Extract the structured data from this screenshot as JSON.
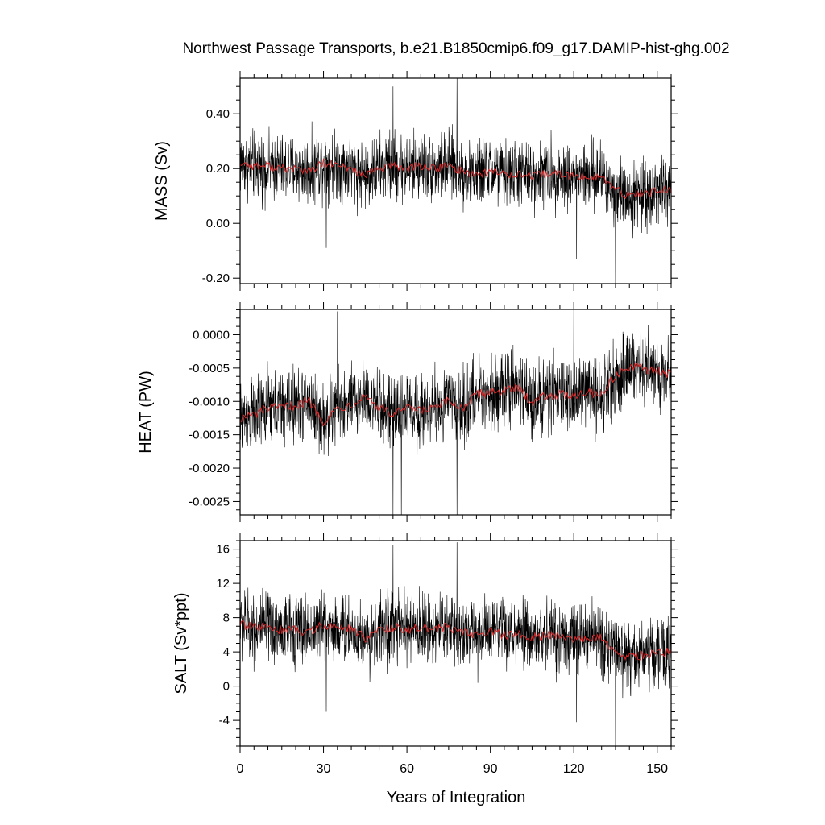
{
  "title": "Northwest Passage Transports, b.e21.B1850cmip6.f09_g17.DAMIP-hist-ghg.002",
  "xlabel": "Years of Integration",
  "colors": {
    "raw": "#000000",
    "smoothed": "#d62728"
  },
  "chart_data": [
    {
      "type": "line",
      "ylabel": "MASS (Sv)",
      "xlim": [
        0,
        155
      ],
      "ylim": [
        -0.22,
        0.53
      ],
      "yticks": [
        -0.2,
        0.0,
        0.2,
        0.4
      ],
      "ytick_labels": [
        "-0.20",
        "0.00",
        "0.20",
        "0.40"
      ],
      "xticks": [
        0,
        30,
        60,
        90,
        120,
        150
      ],
      "grid": false,
      "series": [
        {
          "role": "raw-monthly",
          "x": [
            0,
            5,
            10,
            15,
            20,
            25,
            30,
            35,
            40,
            45,
            50,
            55,
            60,
            65,
            70,
            75,
            80,
            85,
            90,
            95,
            100,
            105,
            110,
            115,
            120,
            125,
            130,
            135,
            140,
            145,
            150,
            155
          ],
          "y": [
            0.22,
            0.21,
            0.21,
            0.2,
            0.2,
            0.19,
            0.22,
            0.21,
            0.2,
            0.17,
            0.2,
            0.21,
            0.2,
            0.21,
            0.2,
            0.21,
            0.19,
            0.18,
            0.19,
            0.18,
            0.18,
            0.17,
            0.18,
            0.18,
            0.17,
            0.17,
            0.17,
            0.12,
            0.1,
            0.11,
            0.12,
            0.12
          ],
          "spread": 0.09,
          "extremes": [
            [
              55,
              0.5
            ],
            [
              78,
              0.53
            ],
            [
              135,
              -0.22
            ],
            [
              121,
              -0.13
            ],
            [
              31,
              -0.09
            ]
          ]
        },
        {
          "role": "smoothed",
          "x": [
            0,
            5,
            10,
            15,
            20,
            25,
            30,
            35,
            40,
            45,
            50,
            55,
            60,
            65,
            70,
            75,
            80,
            85,
            90,
            95,
            100,
            105,
            110,
            115,
            120,
            125,
            130,
            135,
            140,
            145,
            150,
            155
          ],
          "y": [
            0.22,
            0.21,
            0.21,
            0.2,
            0.2,
            0.19,
            0.22,
            0.21,
            0.2,
            0.17,
            0.2,
            0.21,
            0.2,
            0.21,
            0.2,
            0.21,
            0.19,
            0.18,
            0.19,
            0.18,
            0.18,
            0.17,
            0.18,
            0.18,
            0.17,
            0.17,
            0.17,
            0.12,
            0.1,
            0.11,
            0.12,
            0.12
          ]
        }
      ]
    },
    {
      "type": "line",
      "ylabel": "HEAT (PW)",
      "xlim": [
        0,
        155
      ],
      "ylim": [
        -0.0027,
        0.00038
      ],
      "yticks": [
        -0.0025,
        -0.002,
        -0.0015,
        -0.001,
        -0.0005,
        0.0
      ],
      "ytick_labels": [
        "-0.0025",
        "-0.0020",
        "-0.0015",
        "-0.0010",
        "-0.0005",
        "0.0000"
      ],
      "xticks": [
        0,
        30,
        60,
        90,
        120,
        150
      ],
      "grid": false,
      "series": [
        {
          "role": "raw-monthly",
          "x": [
            0,
            5,
            10,
            15,
            20,
            25,
            30,
            35,
            40,
            45,
            50,
            55,
            60,
            65,
            70,
            75,
            80,
            85,
            90,
            95,
            100,
            105,
            110,
            115,
            120,
            125,
            130,
            135,
            140,
            145,
            150,
            155
          ],
          "y": [
            -0.00125,
            -0.0012,
            -0.0011,
            -0.0011,
            -0.00105,
            -0.001,
            -0.0013,
            -0.0011,
            -0.00105,
            -0.0009,
            -0.0011,
            -0.0012,
            -0.0011,
            -0.00115,
            -0.0011,
            -0.001,
            -0.0011,
            -0.0009,
            -0.00085,
            -0.00085,
            -0.0008,
            -0.001,
            -0.0009,
            -0.0009,
            -0.0009,
            -0.00085,
            -0.0009,
            -0.0006,
            -0.0005,
            -0.0005,
            -0.00055,
            -0.0006
          ],
          "spread": 0.0004,
          "extremes": [
            [
              55,
              -0.0027
            ],
            [
              58,
              -0.0027
            ],
            [
              78,
              -0.0027
            ],
            [
              120,
              0.0004
            ],
            [
              35,
              0.00035
            ]
          ]
        },
        {
          "role": "smoothed",
          "x": [
            0,
            5,
            10,
            15,
            20,
            25,
            30,
            35,
            40,
            45,
            50,
            55,
            60,
            65,
            70,
            75,
            80,
            85,
            90,
            95,
            100,
            105,
            110,
            115,
            120,
            125,
            130,
            135,
            140,
            145,
            150,
            155
          ],
          "y": [
            -0.00125,
            -0.0012,
            -0.0011,
            -0.0011,
            -0.00105,
            -0.001,
            -0.0013,
            -0.0011,
            -0.00105,
            -0.0009,
            -0.0011,
            -0.0012,
            -0.0011,
            -0.00115,
            -0.0011,
            -0.001,
            -0.0011,
            -0.0009,
            -0.00085,
            -0.00085,
            -0.0008,
            -0.001,
            -0.0009,
            -0.0009,
            -0.0009,
            -0.00085,
            -0.0009,
            -0.0006,
            -0.0005,
            -0.0005,
            -0.00055,
            -0.0006
          ]
        }
      ]
    },
    {
      "type": "line",
      "ylabel": "SALT (Sv*ppt)",
      "xlim": [
        0,
        155
      ],
      "ylim": [
        -7,
        17
      ],
      "yticks": [
        -4,
        0,
        4,
        8,
        12,
        16
      ],
      "ytick_labels": [
        "-4",
        "0",
        "4",
        "8",
        "12",
        "16"
      ],
      "xticks": [
        0,
        30,
        60,
        90,
        120,
        150
      ],
      "xtick_labels": [
        "0",
        "30",
        "60",
        "90",
        "120",
        "150"
      ],
      "grid": false,
      "series": [
        {
          "role": "raw-monthly",
          "x": [
            0,
            5,
            10,
            15,
            20,
            25,
            30,
            35,
            40,
            45,
            50,
            55,
            60,
            65,
            70,
            75,
            80,
            85,
            90,
            95,
            100,
            105,
            110,
            115,
            120,
            125,
            130,
            135,
            140,
            145,
            150,
            155
          ],
          "y": [
            7.2,
            6.9,
            6.8,
            6.6,
            6.6,
            6.3,
            7.2,
            6.9,
            6.6,
            5.6,
            6.6,
            6.9,
            6.6,
            6.9,
            6.6,
            6.9,
            6.3,
            6.0,
            6.3,
            6.0,
            6.0,
            5.6,
            6.0,
            6.0,
            5.6,
            5.6,
            5.6,
            4.0,
            3.3,
            3.6,
            4.0,
            4.0
          ],
          "spread": 3.0,
          "extremes": [
            [
              55,
              16.5
            ],
            [
              78,
              16.8
            ],
            [
              135,
              -7.0
            ],
            [
              121,
              -4.2
            ],
            [
              31,
              -3.0
            ]
          ]
        },
        {
          "role": "smoothed",
          "x": [
            0,
            5,
            10,
            15,
            20,
            25,
            30,
            35,
            40,
            45,
            50,
            55,
            60,
            65,
            70,
            75,
            80,
            85,
            90,
            95,
            100,
            105,
            110,
            115,
            120,
            125,
            130,
            135,
            140,
            145,
            150,
            155
          ],
          "y": [
            7.2,
            6.9,
            6.8,
            6.6,
            6.6,
            6.3,
            7.2,
            6.9,
            6.6,
            5.6,
            6.6,
            6.9,
            6.6,
            6.9,
            6.6,
            6.9,
            6.3,
            6.0,
            6.3,
            6.0,
            6.0,
            5.6,
            6.0,
            6.0,
            5.6,
            5.6,
            5.6,
            4.0,
            3.3,
            3.6,
            4.0,
            4.0
          ]
        }
      ]
    }
  ]
}
